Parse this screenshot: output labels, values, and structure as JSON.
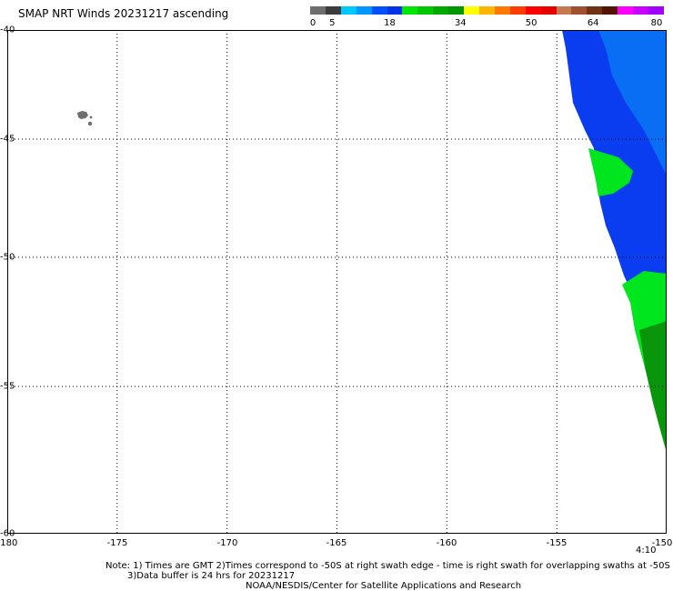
{
  "title": "SMAP NRT Winds 20231217 ascending",
  "colorbar": {
    "labels": [
      {
        "text": "0",
        "value": 0
      },
      {
        "text": "5",
        "value": 5
      },
      {
        "text": "18",
        "value": 18
      },
      {
        "text": "34",
        "value": 34
      },
      {
        "text": "50",
        "value": 50
      },
      {
        "text": "64",
        "value": 64
      },
      {
        "text": "80",
        "value": 80
      }
    ],
    "colors": [
      "#6e6e6e",
      "#3c3c3c",
      "#00c8ff",
      "#0096ff",
      "#0050ff",
      "#0032e6",
      "#00e600",
      "#00c800",
      "#00aa00",
      "#009600",
      "#ffff00",
      "#ffb400",
      "#ff7800",
      "#ff3c00",
      "#ff0000",
      "#e60000",
      "#c87850",
      "#a05030",
      "#6e3214",
      "#501400",
      "#ff00ff",
      "#c800ff",
      "#a000ff"
    ]
  },
  "axes": {
    "x_ticks": [
      "-180",
      "-175",
      "-170",
      "-165",
      "-160",
      "-155",
      "-150"
    ],
    "y_ticks": [
      "-40",
      "-45",
      "-50",
      "-55",
      "-60"
    ],
    "lon_range": [
      -180,
      -150
    ],
    "lat_range": [
      -40,
      -60
    ]
  },
  "time_label": "4:10",
  "notes": {
    "line1": "Note: 1) Times are GMT 2)Times correspond to -50S at right swath edge - time is right swath for overlapping swaths at -50S",
    "line2": "3)Data buffer is 24 hrs for 20231217",
    "line3": "NOAA/NESDIS/Center for Satellite Applications and Research"
  },
  "colors": {
    "wind_blue": "#0a3cf0",
    "wind_blue_light": "#0a6ef5",
    "wind_green": "#00e61e",
    "wind_green_dark": "#0a960a",
    "land": "#6e6e6e",
    "grid": "#000000"
  }
}
